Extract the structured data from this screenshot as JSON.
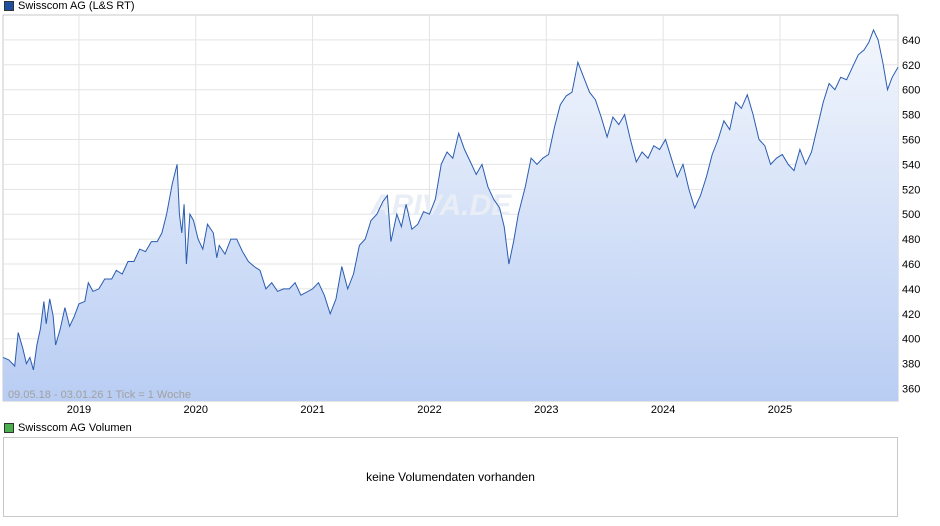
{
  "price_legend": {
    "label": "Swisscom AG (L&S RT)",
    "color": "#1f4fa0"
  },
  "volume_legend": {
    "label": "Swisscom AG Volumen",
    "color": "#4caf50"
  },
  "watermark": "ARIVA.DE",
  "range_info": "09.05.18 - 03.01.26   1 Tick = 1 Woche",
  "volume_message": "keine Volumendaten vorhanden",
  "chart_data": {
    "type": "area",
    "title": "Swisscom AG (L&S RT)",
    "ylim": [
      350,
      660
    ],
    "y_ticks": [
      360,
      380,
      400,
      420,
      440,
      460,
      480,
      500,
      520,
      540,
      560,
      580,
      600,
      620,
      640
    ],
    "x_ticks": [
      "2019",
      "2020",
      "2021",
      "2022",
      "2023",
      "2024",
      "2025"
    ],
    "x_tick_dates": [
      2019.0,
      2020.0,
      2021.0,
      2022.0,
      2023.0,
      2024.0,
      2025.0
    ],
    "xlim": [
      2018.35,
      2026.01
    ],
    "grid": true,
    "line_color": "#2a5cb0",
    "series": [
      {
        "name": "Swisscom AG (L&S RT)",
        "points": [
          [
            2018.35,
            385
          ],
          [
            2018.4,
            383
          ],
          [
            2018.45,
            378
          ],
          [
            2018.48,
            405
          ],
          [
            2018.52,
            392
          ],
          [
            2018.55,
            380
          ],
          [
            2018.58,
            385
          ],
          [
            2018.61,
            375
          ],
          [
            2018.64,
            395
          ],
          [
            2018.67,
            408
          ],
          [
            2018.7,
            430
          ],
          [
            2018.72,
            412
          ],
          [
            2018.75,
            432
          ],
          [
            2018.78,
            418
          ],
          [
            2018.8,
            395
          ],
          [
            2018.84,
            408
          ],
          [
            2018.88,
            425
          ],
          [
            2018.92,
            410
          ],
          [
            2018.96,
            418
          ],
          [
            2019.0,
            428
          ],
          [
            2019.05,
            430
          ],
          [
            2019.08,
            445
          ],
          [
            2019.12,
            438
          ],
          [
            2019.17,
            440
          ],
          [
            2019.22,
            448
          ],
          [
            2019.28,
            448
          ],
          [
            2019.32,
            455
          ],
          [
            2019.37,
            452
          ],
          [
            2019.42,
            462
          ],
          [
            2019.47,
            462
          ],
          [
            2019.52,
            472
          ],
          [
            2019.57,
            470
          ],
          [
            2019.62,
            478
          ],
          [
            2019.67,
            478
          ],
          [
            2019.71,
            485
          ],
          [
            2019.75,
            500
          ],
          [
            2019.8,
            525
          ],
          [
            2019.84,
            540
          ],
          [
            2019.86,
            500
          ],
          [
            2019.88,
            485
          ],
          [
            2019.9,
            508
          ],
          [
            2019.92,
            460
          ],
          [
            2019.95,
            500
          ],
          [
            2019.98,
            495
          ],
          [
            2020.02,
            480
          ],
          [
            2020.06,
            472
          ],
          [
            2020.1,
            492
          ],
          [
            2020.15,
            485
          ],
          [
            2020.18,
            465
          ],
          [
            2020.2,
            475
          ],
          [
            2020.25,
            468
          ],
          [
            2020.3,
            480
          ],
          [
            2020.35,
            480
          ],
          [
            2020.4,
            470
          ],
          [
            2020.45,
            462
          ],
          [
            2020.5,
            458
          ],
          [
            2020.55,
            455
          ],
          [
            2020.6,
            440
          ],
          [
            2020.65,
            445
          ],
          [
            2020.7,
            438
          ],
          [
            2020.75,
            440
          ],
          [
            2020.8,
            440
          ],
          [
            2020.85,
            445
          ],
          [
            2020.9,
            435
          ],
          [
            2021.0,
            440
          ],
          [
            2021.05,
            445
          ],
          [
            2021.1,
            435
          ],
          [
            2021.15,
            420
          ],
          [
            2021.2,
            432
          ],
          [
            2021.25,
            458
          ],
          [
            2021.3,
            440
          ],
          [
            2021.35,
            452
          ],
          [
            2021.4,
            475
          ],
          [
            2021.45,
            480
          ],
          [
            2021.5,
            495
          ],
          [
            2021.55,
            500
          ],
          [
            2021.6,
            510
          ],
          [
            2021.64,
            515
          ],
          [
            2021.67,
            478
          ],
          [
            2021.72,
            500
          ],
          [
            2021.76,
            490
          ],
          [
            2021.8,
            508
          ],
          [
            2021.85,
            488
          ],
          [
            2021.9,
            492
          ],
          [
            2021.95,
            502
          ],
          [
            2022.0,
            500
          ],
          [
            2022.05,
            512
          ],
          [
            2022.1,
            540
          ],
          [
            2022.15,
            550
          ],
          [
            2022.2,
            545
          ],
          [
            2022.25,
            565
          ],
          [
            2022.3,
            552
          ],
          [
            2022.35,
            542
          ],
          [
            2022.4,
            532
          ],
          [
            2022.45,
            540
          ],
          [
            2022.5,
            522
          ],
          [
            2022.55,
            512
          ],
          [
            2022.6,
            505
          ],
          [
            2022.64,
            490
          ],
          [
            2022.68,
            460
          ],
          [
            2022.72,
            478
          ],
          [
            2022.76,
            500
          ],
          [
            2022.82,
            522
          ],
          [
            2022.87,
            545
          ],
          [
            2022.92,
            540
          ],
          [
            2022.97,
            545
          ],
          [
            2023.02,
            548
          ],
          [
            2023.07,
            570
          ],
          [
            2023.12,
            588
          ],
          [
            2023.17,
            595
          ],
          [
            2023.22,
            598
          ],
          [
            2023.27,
            622
          ],
          [
            2023.32,
            610
          ],
          [
            2023.37,
            598
          ],
          [
            2023.42,
            592
          ],
          [
            2023.47,
            578
          ],
          [
            2023.52,
            562
          ],
          [
            2023.57,
            578
          ],
          [
            2023.62,
            572
          ],
          [
            2023.67,
            580
          ],
          [
            2023.72,
            560
          ],
          [
            2023.77,
            542
          ],
          [
            2023.82,
            550
          ],
          [
            2023.87,
            545
          ],
          [
            2023.92,
            555
          ],
          [
            2023.97,
            552
          ],
          [
            2024.02,
            560
          ],
          [
            2024.07,
            545
          ],
          [
            2024.12,
            530
          ],
          [
            2024.17,
            540
          ],
          [
            2024.22,
            520
          ],
          [
            2024.27,
            505
          ],
          [
            2024.32,
            515
          ],
          [
            2024.37,
            530
          ],
          [
            2024.42,
            548
          ],
          [
            2024.47,
            560
          ],
          [
            2024.52,
            575
          ],
          [
            2024.57,
            568
          ],
          [
            2024.62,
            590
          ],
          [
            2024.67,
            585
          ],
          [
            2024.72,
            596
          ],
          [
            2024.77,
            580
          ],
          [
            2024.82,
            560
          ],
          [
            2024.87,
            555
          ],
          [
            2024.92,
            540
          ],
          [
            2024.97,
            545
          ],
          [
            2025.02,
            548
          ],
          [
            2025.07,
            540
          ],
          [
            2025.12,
            535
          ],
          [
            2025.17,
            552
          ],
          [
            2025.22,
            540
          ],
          [
            2025.27,
            550
          ],
          [
            2025.32,
            570
          ],
          [
            2025.37,
            590
          ],
          [
            2025.42,
            605
          ],
          [
            2025.47,
            600
          ],
          [
            2025.52,
            610
          ],
          [
            2025.57,
            608
          ],
          [
            2025.62,
            618
          ],
          [
            2025.67,
            628
          ],
          [
            2025.72,
            632
          ],
          [
            2025.76,
            638
          ],
          [
            2025.8,
            648
          ],
          [
            2025.84,
            640
          ],
          [
            2025.88,
            622
          ],
          [
            2025.92,
            600
          ],
          [
            2025.96,
            610
          ],
          [
            2026.01,
            618
          ]
        ]
      }
    ]
  }
}
